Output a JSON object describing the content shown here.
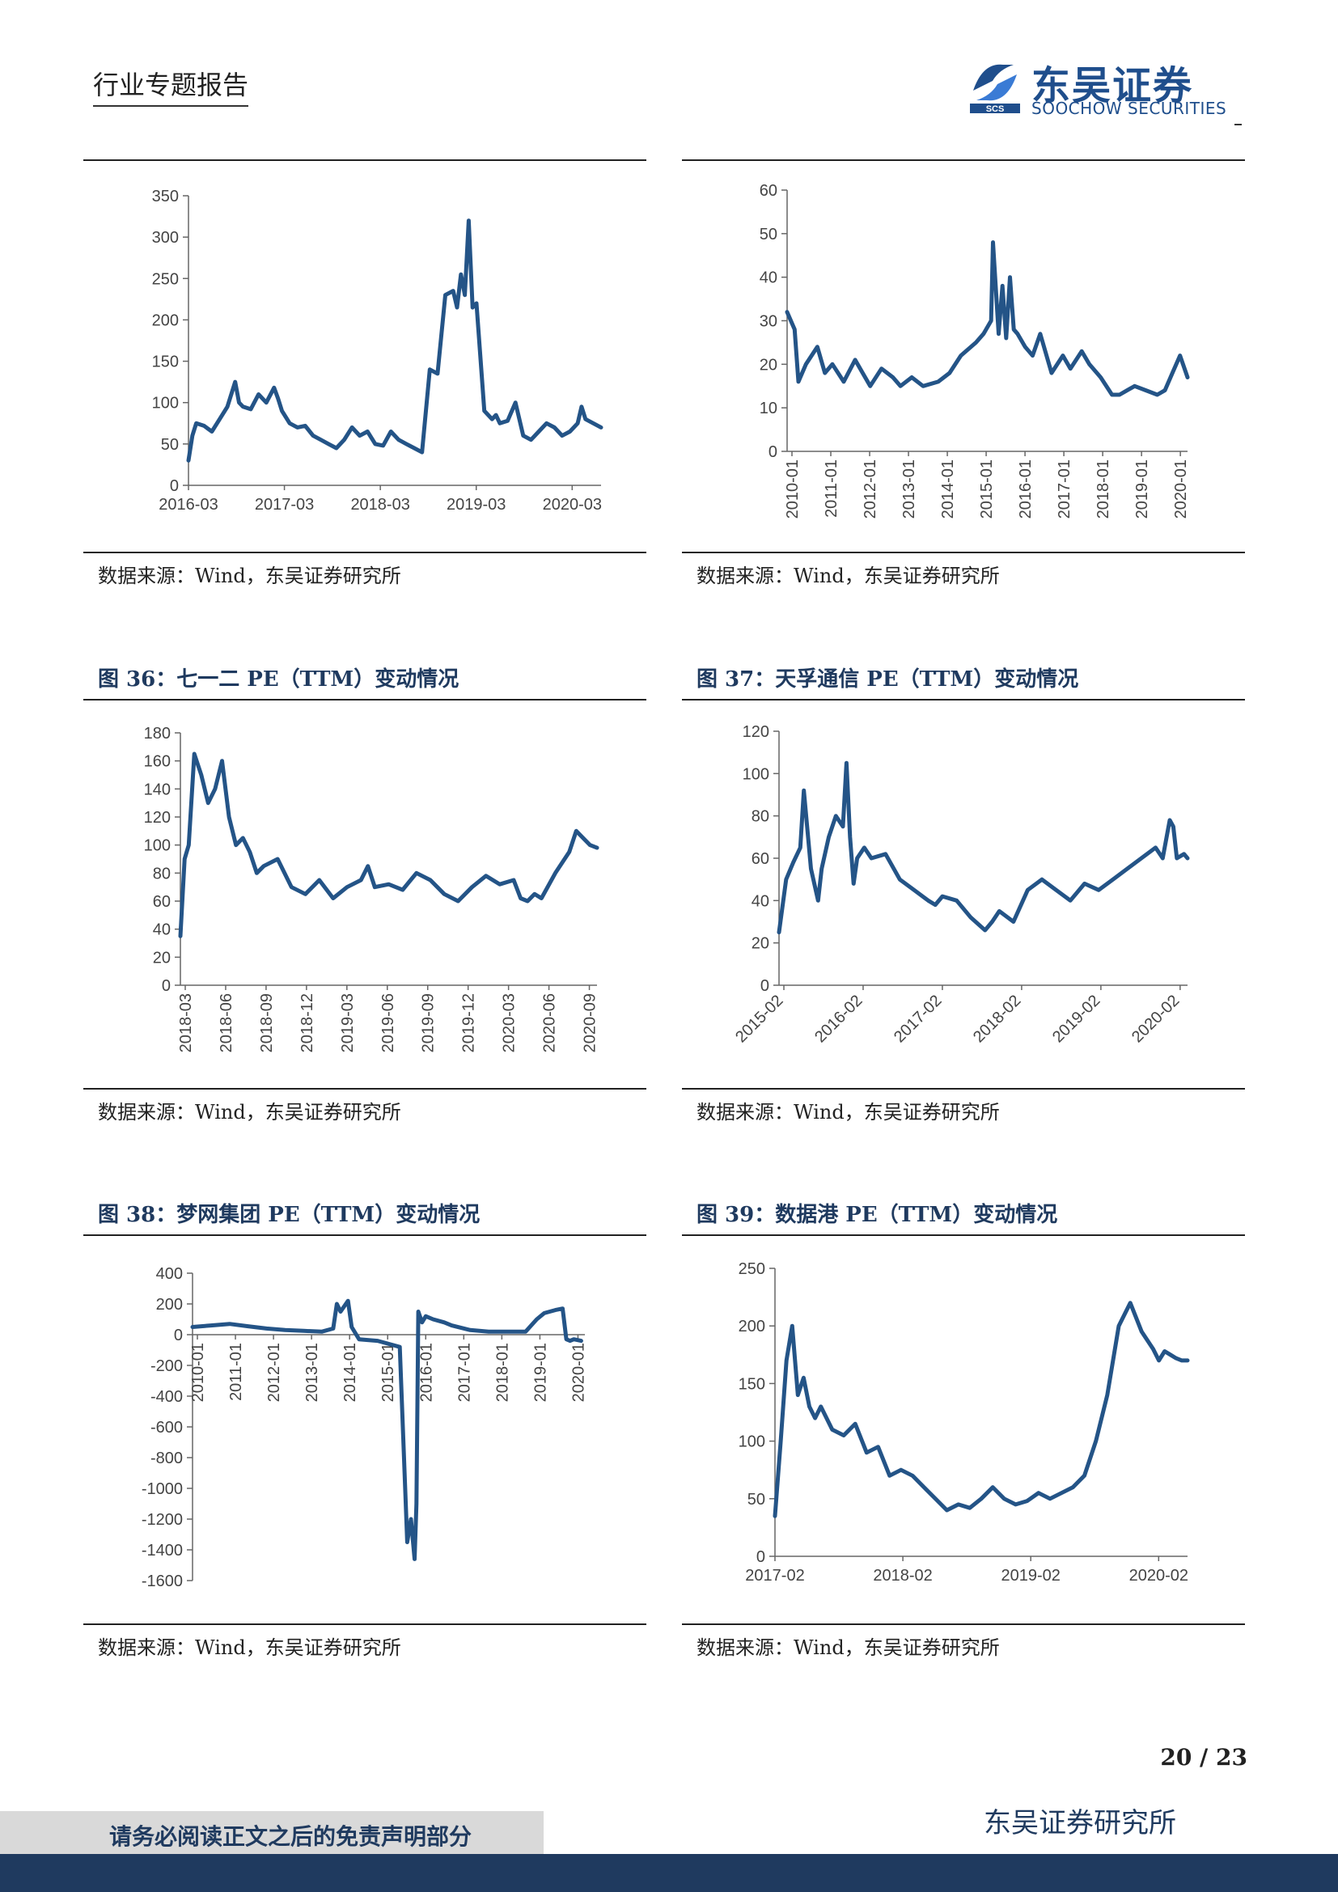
{
  "header": {
    "report_type": "行业专题报告",
    "logo_cn": "东吴证券",
    "logo_en": "SOOCHOW SECURITIES",
    "logo_mark": "SCS"
  },
  "colors": {
    "line": "#245487",
    "title": "#1f3a5f",
    "brand": "#1f4e8c"
  },
  "panels": [
    {
      "title": "",
      "source": "数据来源：Wind，东吴证券研究所"
    },
    {
      "title": "",
      "source": "数据来源：Wind，东吴证券研究所"
    },
    {
      "title": "图 36：七一二 PE（TTM）变动情况",
      "source": "数据来源：Wind，东吴证券研究所"
    },
    {
      "title": "图 37：天孚通信 PE（TTM）变动情况",
      "source": "数据来源：Wind，东吴证券研究所"
    },
    {
      "title": "图 38：梦网集团 PE（TTM）变动情况",
      "source": "数据来源：Wind，东吴证券研究所"
    },
    {
      "title": "图 39：数据港 PE（TTM）变动情况",
      "source": "数据来源：Wind，东吴证券研究所"
    }
  ],
  "chart_data": [
    {
      "type": "line",
      "xlabel": "",
      "ylabel": "",
      "ylim": [
        0,
        350
      ],
      "yticks": [
        0,
        50,
        100,
        150,
        200,
        250,
        300,
        350
      ],
      "xticks": [
        "2016-03",
        "2017-03",
        "2018-03",
        "2019-03",
        "2020-03"
      ],
      "xrange": [
        0,
        53
      ],
      "x": [
        0,
        0.5,
        1,
        2,
        3,
        4,
        5,
        6,
        6.5,
        7,
        8,
        9,
        10,
        11,
        11.5,
        12,
        13,
        14,
        15,
        16,
        17,
        18,
        19,
        20,
        21,
        22,
        23,
        24,
        25,
        26,
        27,
        28,
        29,
        30,
        31,
        32,
        33,
        34,
        34.5,
        35,
        35.5,
        36,
        36.5,
        37,
        38,
        39,
        39.5,
        40,
        41,
        42,
        43,
        44,
        45,
        46,
        47,
        48,
        49,
        50,
        50.5,
        51,
        52,
        53
      ],
      "values": [
        30,
        60,
        75,
        72,
        65,
        80,
        95,
        125,
        100,
        95,
        92,
        110,
        100,
        118,
        105,
        90,
        75,
        70,
        72,
        60,
        55,
        50,
        45,
        55,
        70,
        60,
        65,
        50,
        48,
        65,
        55,
        50,
        45,
        40,
        140,
        135,
        230,
        235,
        215,
        255,
        230,
        320,
        215,
        220,
        90,
        80,
        85,
        75,
        78,
        100,
        60,
        55,
        65,
        75,
        70,
        60,
        65,
        75,
        95,
        80,
        75,
        70
      ],
      "series_color": "#245487"
    },
    {
      "type": "line",
      "xlabel": "",
      "ylabel": "",
      "ylim": [
        0,
        60
      ],
      "yticks": [
        0,
        10,
        20,
        30,
        40,
        50,
        60
      ],
      "xticks": [
        "2010-01",
        "2011-01",
        "2012-01",
        "2013-01",
        "2014-01",
        "2015-01",
        "2016-01",
        "2017-01",
        "2018-01",
        "2019-01",
        "2020-01"
      ],
      "xrange": [
        0,
        10.6
      ],
      "x": [
        0,
        0.2,
        0.3,
        0.5,
        0.8,
        1,
        1.2,
        1.5,
        1.8,
        2,
        2.2,
        2.5,
        2.8,
        3,
        3.3,
        3.6,
        4,
        4.3,
        4.6,
        5,
        5.2,
        5.4,
        5.45,
        5.6,
        5.7,
        5.8,
        5.9,
        6,
        6.1,
        6.3,
        6.5,
        6.7,
        7,
        7.3,
        7.5,
        7.8,
        8,
        8.3,
        8.6,
        8.8,
        9,
        9.2,
        9.5,
        9.8,
        10,
        10.2,
        10.4,
        10.6
      ],
      "values": [
        32,
        28,
        16,
        20,
        24,
        18,
        20,
        16,
        21,
        18,
        15,
        19,
        17,
        15,
        17,
        15,
        16,
        18,
        22,
        25,
        27,
        30,
        48,
        27,
        38,
        26,
        40,
        28,
        27,
        24,
        22,
        27,
        18,
        22,
        19,
        23,
        20,
        17,
        13,
        13,
        14,
        15,
        14,
        13,
        14,
        18,
        22,
        17
      ],
      "series_color": "#245487"
    },
    {
      "type": "line",
      "xlabel": "",
      "ylabel": "",
      "ylim": [
        0,
        180
      ],
      "yticks": [
        0,
        20,
        40,
        60,
        80,
        100,
        120,
        140,
        160,
        180
      ],
      "xticks": [
        "2018-03",
        "2018-06",
        "2018-09",
        "2018-12",
        "2019-03",
        "2019-06",
        "2019-09",
        "2019-12",
        "2020-03",
        "2020-06",
        "2020-09"
      ],
      "xrange": [
        0,
        30
      ],
      "x": [
        0,
        0.3,
        0.6,
        1,
        1.5,
        2,
        2.5,
        3,
        3.5,
        4,
        4.5,
        5,
        5.5,
        6,
        7,
        8,
        9,
        10,
        11,
        12,
        13,
        13.5,
        14,
        15,
        16,
        17,
        18,
        19,
        20,
        21,
        22,
        23,
        24,
        24.5,
        25,
        25.5,
        26,
        27,
        28,
        28.5,
        29,
        29.5,
        30
      ],
      "values": [
        35,
        90,
        100,
        165,
        150,
        130,
        140,
        160,
        120,
        100,
        105,
        95,
        80,
        85,
        90,
        70,
        65,
        75,
        62,
        70,
        75,
        85,
        70,
        72,
        68,
        80,
        75,
        65,
        60,
        70,
        78,
        72,
        75,
        62,
        60,
        65,
        62,
        80,
        95,
        110,
        105,
        100,
        98
      ],
      "series_color": "#245487"
    },
    {
      "type": "line",
      "xlabel": "",
      "ylabel": "",
      "ylim": [
        0,
        120
      ],
      "yticks": [
        0,
        20,
        40,
        60,
        80,
        100,
        120
      ],
      "xticks": [
        "2015-02",
        "2016-02",
        "2017-02",
        "2018-02",
        "2019-02",
        "2020-02"
      ],
      "xrange": [
        0,
        5.75
      ],
      "x": [
        0,
        0.1,
        0.2,
        0.3,
        0.35,
        0.45,
        0.55,
        0.6,
        0.7,
        0.8,
        0.9,
        0.95,
        1.0,
        1.05,
        1.1,
        1.2,
        1.3,
        1.5,
        1.7,
        1.9,
        2.1,
        2.2,
        2.3,
        2.5,
        2.7,
        2.9,
        3.0,
        3.1,
        3.3,
        3.5,
        3.7,
        3.9,
        4.1,
        4.3,
        4.5,
        4.7,
        4.9,
        5.1,
        5.3,
        5.4,
        5.5,
        5.55,
        5.6,
        5.7,
        5.75
      ],
      "values": [
        25,
        50,
        58,
        65,
        92,
        55,
        40,
        55,
        70,
        80,
        75,
        105,
        70,
        48,
        60,
        65,
        60,
        62,
        50,
        45,
        40,
        38,
        42,
        40,
        32,
        26,
        30,
        35,
        30,
        45,
        50,
        45,
        40,
        48,
        45,
        50,
        55,
        60,
        65,
        60,
        78,
        75,
        60,
        62,
        60
      ],
      "series_color": "#245487"
    },
    {
      "type": "line",
      "xlabel": "",
      "ylabel": "",
      "ylim": [
        -1600,
        400
      ],
      "yticks": [
        -1600,
        -1400,
        -1200,
        -1000,
        -800,
        -600,
        -400,
        -200,
        0,
        200,
        400
      ],
      "xticks": [
        "2010-01",
        "2011-01",
        "2012-01",
        "2013-01",
        "2014-01",
        "2015-01",
        "2016-01",
        "2017-01",
        "2018-01",
        "2019-01",
        "2020-01"
      ],
      "xrange": [
        0,
        10.6
      ],
      "x": [
        0,
        0.5,
        1,
        1.5,
        2,
        2.5,
        3,
        3.5,
        3.8,
        3.9,
        4.0,
        4.2,
        4.3,
        4.5,
        5,
        5.3,
        5.6,
        5.8,
        5.9,
        6.0,
        6.05,
        6.1,
        6.2,
        6.3,
        6.5,
        6.8,
        7,
        7.5,
        8,
        8.5,
        9,
        9.3,
        9.5,
        9.8,
        10,
        10.1,
        10.2,
        10.3,
        10.5
      ],
      "values": [
        50,
        60,
        70,
        55,
        40,
        30,
        25,
        20,
        40,
        200,
        150,
        220,
        50,
        -30,
        -40,
        -60,
        -80,
        -1350,
        -1200,
        -1460,
        -1100,
        150,
        80,
        120,
        100,
        80,
        60,
        30,
        20,
        20,
        20,
        100,
        140,
        160,
        170,
        -30,
        -40,
        -30,
        -40
      ],
      "series_color": "#245487"
    },
    {
      "type": "line",
      "xlabel": "",
      "ylabel": "",
      "ylim": [
        0,
        250
      ],
      "yticks": [
        0,
        50,
        100,
        150,
        200,
        250
      ],
      "xticks": [
        "2017-02",
        "2018-02",
        "2019-02",
        "2020-02"
      ],
      "xrange": [
        0,
        3.6
      ],
      "x": [
        0,
        0.05,
        0.1,
        0.15,
        0.2,
        0.25,
        0.3,
        0.35,
        0.4,
        0.5,
        0.6,
        0.7,
        0.8,
        0.9,
        1,
        1.1,
        1.2,
        1.3,
        1.4,
        1.5,
        1.6,
        1.7,
        1.8,
        1.9,
        2,
        2.1,
        2.2,
        2.3,
        2.4,
        2.5,
        2.6,
        2.7,
        2.8,
        2.9,
        3,
        3.1,
        3.2,
        3.3,
        3.35,
        3.4,
        3.45,
        3.5,
        3.55,
        3.6
      ],
      "values": [
        35,
        100,
        170,
        200,
        140,
        155,
        130,
        120,
        130,
        110,
        105,
        115,
        90,
        95,
        70,
        75,
        70,
        60,
        50,
        40,
        45,
        42,
        50,
        60,
        50,
        45,
        48,
        55,
        50,
        55,
        60,
        70,
        100,
        140,
        200,
        220,
        195,
        180,
        170,
        178,
        175,
        172,
        170,
        170
      ],
      "series_color": "#245487"
    }
  ],
  "footer": {
    "page": "20 / 23",
    "institute": "东吴证券研究所",
    "disclaimer": "请务必阅读正文之后的免责声明部分"
  }
}
